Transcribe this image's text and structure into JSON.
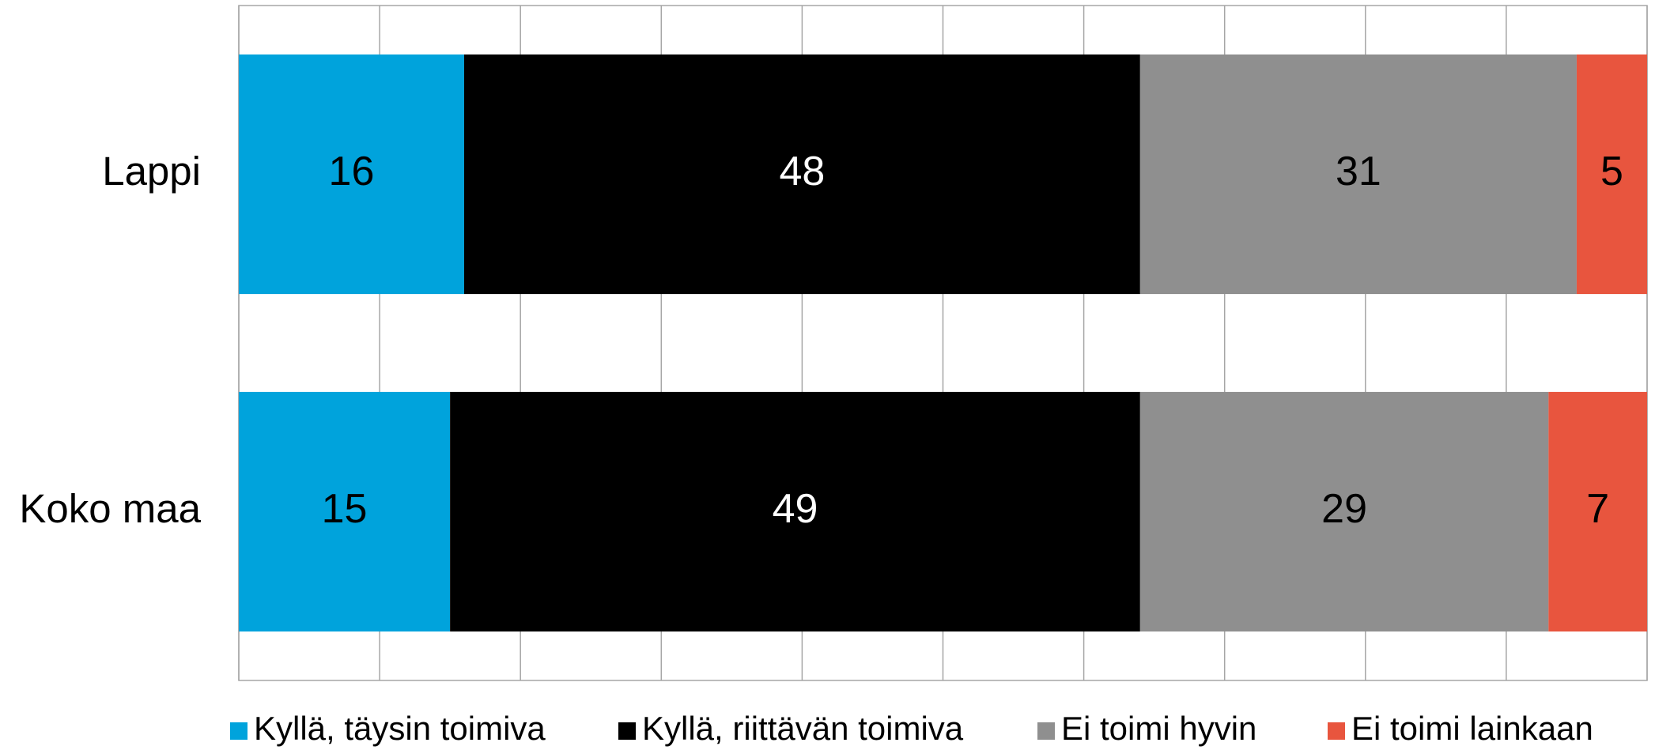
{
  "chart_data": {
    "type": "stacked-barh",
    "categories": [
      "Lappi",
      "Koko maa"
    ],
    "series": [
      {
        "name": "Kyllä, täysin toimiva",
        "color": "#00a3dc",
        "values": [
          16,
          15
        ]
      },
      {
        "name": "Kyllä, riittävän toimiva",
        "color": "#000000",
        "values": [
          48,
          49
        ]
      },
      {
        "name": "Ei toimi hyvin",
        "color": "#8f8f8f",
        "values": [
          31,
          29
        ]
      },
      {
        "name": "Ei toimi lainkaan",
        "color": "#e8553e",
        "values": [
          5,
          7
        ]
      }
    ],
    "xlim": [
      0,
      100
    ],
    "xticks": [
      0,
      10,
      20,
      30,
      40,
      50,
      60,
      70,
      80,
      90,
      100
    ],
    "grid": true
  }
}
